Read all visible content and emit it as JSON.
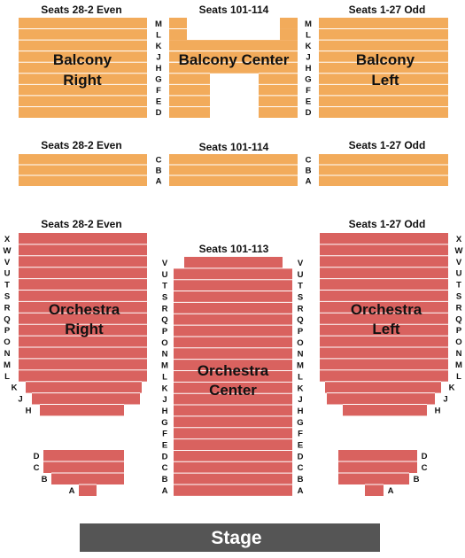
{
  "colors": {
    "balcony": "#f2ab5b",
    "orchestra": "#d9625f",
    "stage": "#555555",
    "row_divider": "#ffffff",
    "text": "#111111",
    "stage_text": "#ffffff"
  },
  "balcony_upper": {
    "right": {
      "seats": "Seats  28-2 Even",
      "name_line1": "Balcony",
      "name_line2": "Right",
      "rows": [
        "M",
        "L",
        "K",
        "J",
        "H",
        "G",
        "F",
        "E",
        "D"
      ]
    },
    "center": {
      "seats": "Seats  101-114",
      "name": "Balcony Center",
      "rows": [
        "M",
        "L",
        "K",
        "J",
        "H",
        "G",
        "F",
        "E",
        "D"
      ]
    },
    "left": {
      "seats": "Seats  1-27 Odd",
      "name_line1": "Balcony",
      "name_line2": "Left",
      "rows": [
        "M",
        "L",
        "K",
        "J",
        "H",
        "G",
        "F",
        "E",
        "D"
      ]
    }
  },
  "balcony_lower": {
    "right": {
      "seats": "Seats  28-2 Even",
      "rows": [
        "C",
        "B",
        "A"
      ]
    },
    "center": {
      "seats": "Seats  101-114",
      "rows": [
        "C",
        "B",
        "A"
      ]
    },
    "left": {
      "seats": "Seats  1-27 Odd",
      "rows": [
        "C",
        "B",
        "A"
      ]
    }
  },
  "orchestra": {
    "right": {
      "seats": "Seats  28-2 Even",
      "name_line1": "Orchestra",
      "name_line2": "Right",
      "rows": [
        "X",
        "W",
        "V",
        "U",
        "T",
        "S",
        "R",
        "Q",
        "P",
        "O",
        "N",
        "M",
        "L",
        "K",
        "J",
        "H"
      ],
      "front_rows": [
        "D",
        "C",
        "B",
        "A"
      ]
    },
    "center": {
      "seats": "Seats  101-113",
      "name_line1": "Orchestra",
      "name_line2": "Center",
      "rows": [
        "V",
        "U",
        "T",
        "S",
        "R",
        "Q",
        "P",
        "O",
        "N",
        "M",
        "L",
        "K",
        "J",
        "H",
        "G",
        "F",
        "E",
        "D",
        "C",
        "B",
        "A"
      ]
    },
    "left": {
      "seats": "Seats  1-27 Odd",
      "name_line1": "Orchestra",
      "name_line2": "Left",
      "rows": [
        "X",
        "W",
        "V",
        "U",
        "T",
        "S",
        "R",
        "Q",
        "P",
        "O",
        "N",
        "M",
        "L",
        "K",
        "J",
        "H"
      ],
      "front_rows": [
        "D",
        "C",
        "B",
        "A"
      ]
    }
  },
  "stage": {
    "label": "Stage"
  }
}
